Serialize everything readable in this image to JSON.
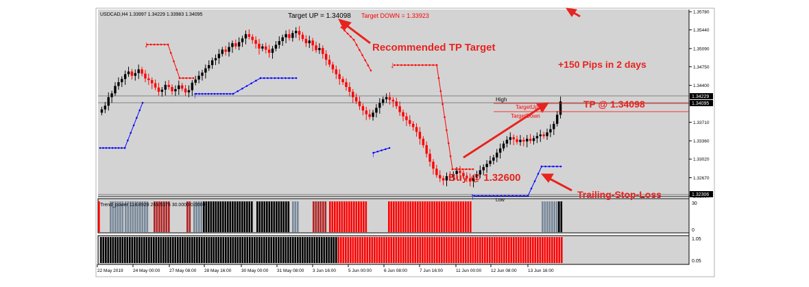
{
  "header": {
    "symbol_info": "USDCAD,H4  1.33997 1.34229 1.33983 1.34095",
    "target_up": "Target UP = 1.34098",
    "target_down": "Target DOWN = 1.33923"
  },
  "annotations": {
    "recommended_tp": "Recommended TP Target",
    "pips": "+150 Pips in 2 days",
    "tp": "TP @ 1.34098",
    "buy": "Buy @ 1.32600",
    "trailing": "Trailing-Stop-Loss",
    "high": "High",
    "low": "Low",
    "target_up_small": "TargetUp",
    "target_down_small": "TargetDown"
  },
  "colors": {
    "bull": "#000000",
    "bear": "#ff0000",
    "gray_bar": "#778899",
    "dark_red_bar": "#b22222",
    "annotation_red": "#e8231e",
    "stop_blue": "#0000ff",
    "panel_bg": "#d3d3d3"
  },
  "chart_data": {
    "type": "candlestick",
    "timeframe": "H4",
    "ylim": [
      1.3233,
      1.3582
    ],
    "y_ticks": [
      1.3578,
      1.3544,
      1.3509,
      1.3475,
      1.344,
      1.3406,
      1.3371,
      1.3336,
      1.3302,
      1.3267,
      1.3233
    ],
    "y_tick_labels": [
      "1.35780",
      "1.35440",
      "1.35090",
      "1.34750",
      "1.34400",
      "1.33710",
      "1.33360",
      "1.33020",
      "1.32670",
      "1.32330"
    ],
    "price_tags": [
      "1.34229",
      "1.34095",
      "1.32306"
    ],
    "horizontal_levels": [
      {
        "name": "High",
        "value": 1.34229
      },
      {
        "name": "Close",
        "value": 1.34095
      },
      {
        "name": "Low",
        "value": 1.32306
      }
    ],
    "x_tick_labels": [
      "22 May 2019",
      "24 May 00:00",
      "27 May 08:00",
      "28 May 16:00",
      "30 May 00:00",
      "31 May 08:00",
      "3 Jun 16:00",
      "5 Jun 00:00",
      "6 Jun 08:00",
      "7 Jun 16:00",
      "11 Jun 00:00",
      "12 Jun 08:00",
      "13 Jun 16:00"
    ],
    "close": [
      1.3395,
      1.3402,
      1.3418,
      1.3425,
      1.3439,
      1.3446,
      1.3452,
      1.3461,
      1.3466,
      1.3458,
      1.3463,
      1.347,
      1.3462,
      1.3453,
      1.345,
      1.3444,
      1.3436,
      1.3428,
      1.3432,
      1.3441,
      1.3437,
      1.3429,
      1.3433,
      1.344,
      1.3434,
      1.3427,
      1.3431,
      1.3445,
      1.3451,
      1.3458,
      1.3464,
      1.3472,
      1.3478,
      1.3487,
      1.3491,
      1.3499,
      1.3507,
      1.3503,
      1.3512,
      1.3519,
      1.3513,
      1.3521,
      1.3528,
      1.3536,
      1.3531,
      1.3525,
      1.3518,
      1.3509,
      1.3513,
      1.3507,
      1.3501,
      1.3509,
      1.3516,
      1.3523,
      1.353,
      1.3536,
      1.3529,
      1.3538,
      1.3542,
      1.3535,
      1.3527,
      1.3519,
      1.3524,
      1.3515,
      1.3506,
      1.351,
      1.3499,
      1.3488,
      1.3479,
      1.347,
      1.3461,
      1.3452,
      1.3446,
      1.3437,
      1.3428,
      1.3418,
      1.341,
      1.3401,
      1.3393,
      1.3386,
      1.3381,
      1.3389,
      1.3398,
      1.3407,
      1.3414,
      1.3418,
      1.3413,
      1.341,
      1.3401,
      1.339,
      1.3382,
      1.3375,
      1.3368,
      1.3362,
      1.3353,
      1.334,
      1.3328,
      1.3312,
      1.3297,
      1.3284,
      1.3272,
      1.3266,
      1.3262,
      1.327,
      1.3268,
      1.3274,
      1.328,
      1.3276,
      1.327,
      1.3266,
      1.326,
      1.3267,
      1.3273,
      1.3281,
      1.3287,
      1.3293,
      1.3299,
      1.3305,
      1.3314,
      1.3322,
      1.3331,
      1.3338,
      1.3343,
      1.3339,
      1.3334,
      1.3338,
      1.3335,
      1.334,
      1.3336,
      1.3341,
      1.3345,
      1.3348,
      1.3345,
      1.3352,
      1.3358,
      1.3368,
      1.3385,
      1.341
    ]
  },
  "indicator1": {
    "label": "Trend_power 114.8928 265.5375 30.0000 0.0000",
    "axis": [
      "30",
      "0"
    ]
  },
  "indicator2": {
    "label": "Trend Histogram",
    "axis": [
      "1.05",
      "0.05"
    ]
  }
}
